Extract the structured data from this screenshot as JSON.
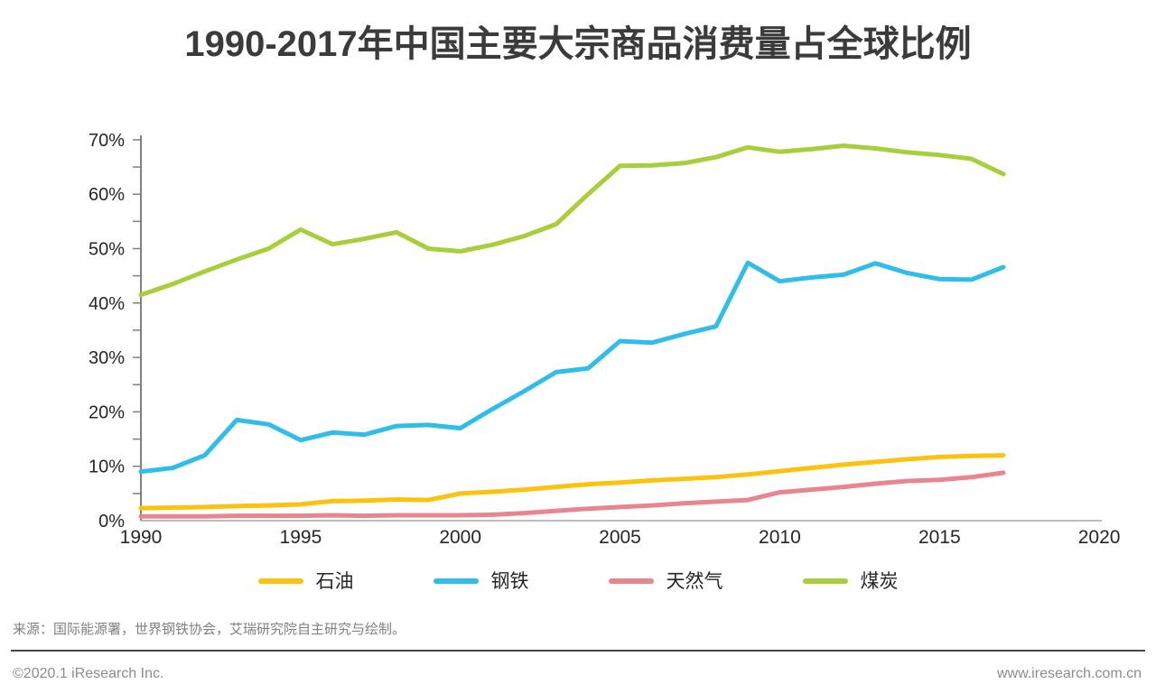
{
  "title": "1990-2017年中国主要大宗商品消费量占全球比例",
  "source_note": "来源：国际能源署，世界钢铁协会，艾瑞研究院自主研究与绘制。",
  "footer": {
    "copyright": "©2020.1 iResearch Inc.",
    "website": "www.iresearch.com.cn"
  },
  "colors": {
    "oil": "#FBC30E",
    "steel": "#30BDEA",
    "gas": "#E8858F",
    "coal": "#A8CE3A",
    "axis": "#808080",
    "baseline": "#A6A6A6",
    "axis_text": "#262626",
    "muted_text": "#8c8c8c",
    "title_text": "#3b3b3b"
  },
  "chart_data": {
    "type": "line",
    "title": "1990-2017年中国主要大宗商品消费量占全球比例",
    "xlabel": "",
    "ylabel": "",
    "grid": false,
    "legend_position": "bottom",
    "x": [
      1990,
      1991,
      1992,
      1993,
      1994,
      1995,
      1996,
      1997,
      1998,
      1999,
      2000,
      2001,
      2002,
      2003,
      2004,
      2005,
      2006,
      2007,
      2008,
      2009,
      2010,
      2011,
      2012,
      2013,
      2014,
      2015,
      2016,
      2017
    ],
    "x_axis": {
      "tick_labels": [
        "1990",
        "1995",
        "2000",
        "2005",
        "2010",
        "2015",
        "2020"
      ],
      "range": [
        1990,
        2020
      ]
    },
    "y_axis": {
      "tick_labels": [
        "0%",
        "10%",
        "20%",
        "30%",
        "40%",
        "50%",
        "60%",
        "70%"
      ],
      "range": [
        0,
        70
      ],
      "minor_tick_step": 5,
      "unit": "%"
    },
    "series": [
      {
        "name": "石油",
        "color": "#FBC30E",
        "values": [
          2.3,
          2.4,
          2.5,
          2.7,
          2.8,
          3.0,
          3.6,
          3.7,
          3.9,
          3.8,
          5.0,
          5.3,
          5.7,
          6.2,
          6.7,
          7.0,
          7.4,
          7.7,
          8.0,
          8.5,
          9.1,
          9.7,
          10.3,
          10.8,
          11.3,
          11.7,
          11.9,
          12.0
        ]
      },
      {
        "name": "钢铁",
        "color": "#30BDEA",
        "values": [
          9.0,
          9.7,
          12.0,
          18.5,
          17.7,
          14.8,
          16.2,
          15.8,
          17.4,
          17.6,
          17.0,
          20.5,
          23.8,
          27.3,
          28.0,
          33.0,
          32.7,
          34.3,
          35.7,
          47.4,
          44.0,
          44.7,
          45.2,
          47.3,
          45.5,
          44.4,
          44.3,
          46.6
        ]
      },
      {
        "name": "天然气",
        "color": "#E8858F",
        "values": [
          0.8,
          0.8,
          0.8,
          0.9,
          0.9,
          0.9,
          1.0,
          0.9,
          1.0,
          1.0,
          1.0,
          1.1,
          1.4,
          1.8,
          2.2,
          2.5,
          2.8,
          3.2,
          3.5,
          3.8,
          5.2,
          5.7,
          6.2,
          6.8,
          7.3,
          7.5,
          8.0,
          8.8
        ]
      },
      {
        "name": "煤炭",
        "color": "#A8CE3A",
        "values": [
          41.5,
          43.5,
          45.8,
          48.0,
          50.0,
          53.5,
          50.8,
          51.8,
          53.0,
          50.0,
          49.5,
          50.7,
          52.3,
          54.5,
          60.0,
          65.2,
          65.3,
          65.7,
          66.8,
          68.6,
          67.8,
          68.3,
          68.9,
          68.4,
          67.7,
          67.2,
          66.5,
          63.7
        ]
      }
    ]
  }
}
